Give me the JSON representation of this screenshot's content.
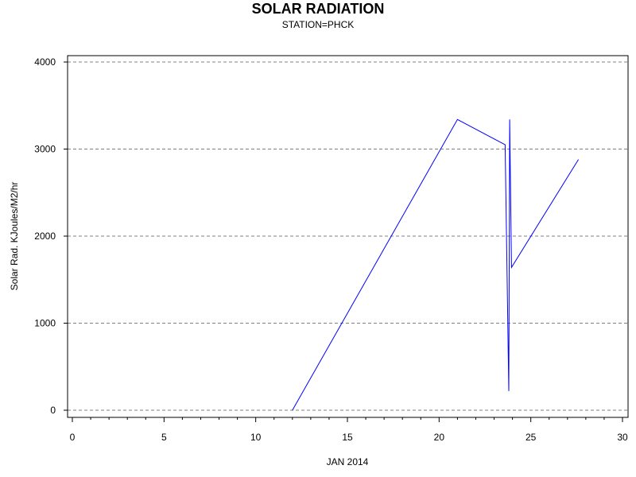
{
  "chart_data": {
    "type": "line",
    "title": "SOLAR RADIATION",
    "subtitle": "STATION=PHCK",
    "xlabel": "JAN 2014",
    "ylabel": "Solar Rad. KJoules/M2/hr",
    "xlim": [
      0,
      30
    ],
    "ylim": [
      0,
      4000
    ],
    "x_ticks": [
      0,
      5,
      10,
      15,
      20,
      25,
      30
    ],
    "y_ticks": [
      0,
      1000,
      2000,
      3000,
      4000
    ],
    "grid": "horizontal dashed",
    "series": [
      {
        "color": "#0000ff",
        "points": [
          {
            "x": 12.0,
            "y": 0
          },
          {
            "x": 21.0,
            "y": 3340
          },
          {
            "x": 23.6,
            "y": 3050
          },
          {
            "x": 23.8,
            "y": 220
          },
          {
            "x": 23.85,
            "y": 3340
          },
          {
            "x": 23.95,
            "y": 1640
          },
          {
            "x": 27.6,
            "y": 2880
          }
        ]
      }
    ]
  }
}
